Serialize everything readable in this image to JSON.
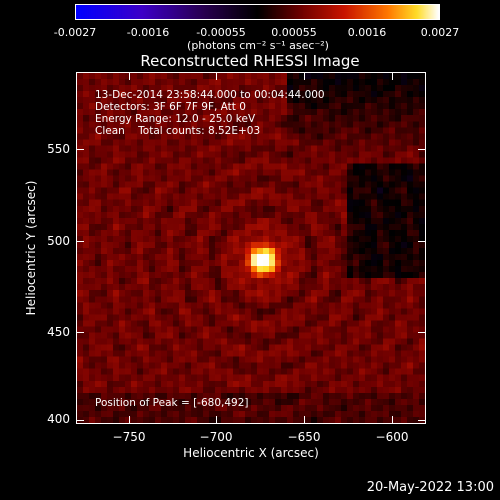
{
  "colorbar": {
    "tick_labels": [
      "-0.0027",
      "-0.0016",
      "-0.00055",
      "0.00055",
      "0.0016",
      "0.0027"
    ],
    "units": "(photons cm⁻² s⁻¹ asec⁻²)"
  },
  "title": "Reconstructed RHESSI Image",
  "info": {
    "time_range": "13-Dec-2014 23:58:44.000 to 00:04:44.000",
    "detectors": "Detectors: 3F 6F 7F 9F, Att 0",
    "energy": "Energy Range: 12.0 - 25.0 keV",
    "clean": "Clean    Total counts: 8.52E+03",
    "peak": "Position of Peak = [-680,492]"
  },
  "axes": {
    "x_title": "Heliocentric X (arcsec)",
    "y_title": "Heliocentric Y (arcsec)",
    "x_ticks": [
      "−750",
      "−700",
      "−650",
      "−600"
    ],
    "y_ticks": [
      "550",
      "500",
      "450",
      "400"
    ]
  },
  "footer": {
    "date": "20-May-2022 13:00"
  },
  "colors": {
    "background": "#000000",
    "foreground": "#ffffff"
  }
}
